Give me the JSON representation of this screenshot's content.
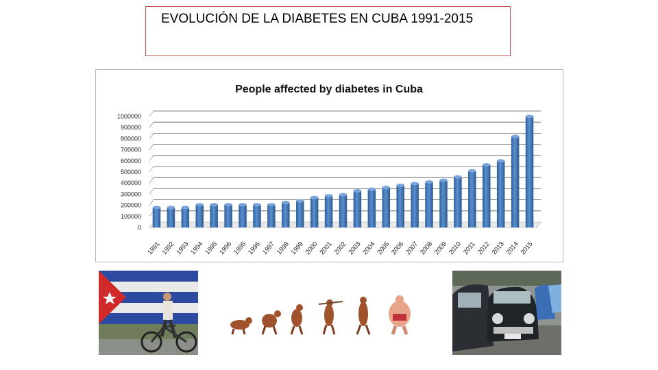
{
  "slide": {
    "title": "EVOLUCIÓN DE LA DIABETES EN CUBA  1991-2015"
  },
  "images": {
    "flag_cyclist": "cuban-flag-mural-with-cyclist",
    "evolution": "human-evolution-to-obesity-illustration",
    "cars": "classic-cars-street"
  },
  "colors": {
    "bar": "#4a7ebb",
    "title_border": "#c0504d"
  },
  "chart_data": {
    "type": "bar",
    "title": "People affected by diabetes in Cuba",
    "xlabel": "",
    "ylabel": "",
    "ylim": [
      0,
      1000000
    ],
    "yticks": [
      "0",
      "100000",
      "200000",
      "300000",
      "400000",
      "500000",
      "600000",
      "700000",
      "800000",
      "900000",
      "1000000"
    ],
    "grid": true,
    "legend": "none",
    "categories": [
      "1991",
      "1992",
      "1993",
      "1994",
      "1995",
      "1996",
      "1995",
      "1996",
      "1997",
      "1998",
      "1999",
      "2000",
      "2001",
      "2002",
      "2003",
      "2004",
      "2005",
      "2006",
      "2007",
      "2008",
      "2009",
      "2010",
      "2011",
      "2012",
      "2013",
      "2014",
      "2015"
    ],
    "values": [
      180000,
      180000,
      180000,
      205000,
      205000,
      205000,
      205000,
      205000,
      205000,
      225000,
      240000,
      270000,
      285000,
      295000,
      330000,
      345000,
      360000,
      380000,
      395000,
      410000,
      425000,
      455000,
      510000,
      565000,
      600000,
      820000,
      1000000
    ]
  }
}
